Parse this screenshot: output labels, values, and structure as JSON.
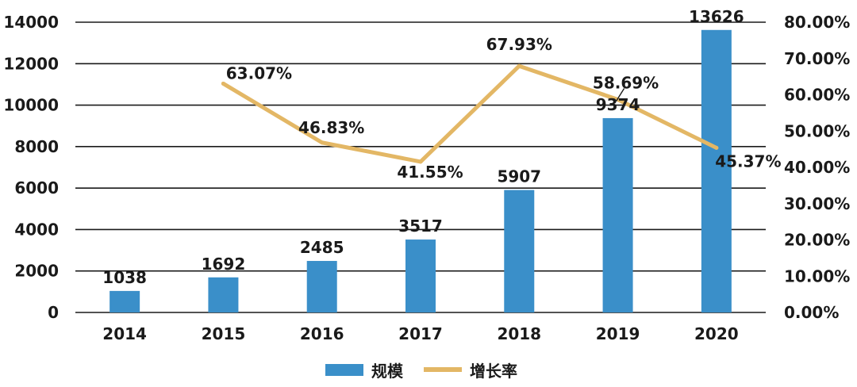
{
  "chart_data": {
    "type": "bar+line",
    "title": "",
    "categories": [
      "2014",
      "2015",
      "2016",
      "2017",
      "2018",
      "2019",
      "2020"
    ],
    "series": [
      {
        "name": "规模",
        "type": "bar",
        "axis": "left",
        "color": "#3a8fc9",
        "values": [
          1038,
          1692,
          2485,
          3517,
          5907,
          9374,
          13626
        ],
        "labels": [
          "1038",
          "1692",
          "2485",
          "3517",
          "5907",
          "9374",
          "13626"
        ]
      },
      {
        "name": "增长率",
        "type": "line",
        "axis": "right",
        "color": "#e3b765",
        "values": [
          null,
          63.07,
          46.83,
          41.55,
          67.93,
          58.69,
          45.37
        ],
        "labels": [
          "",
          "63.07%",
          "46.83%",
          "41.55%",
          "67.93%",
          "58.69%",
          "45.37%"
        ]
      }
    ],
    "y_left": {
      "min": 0,
      "max": 14000,
      "ticks": [
        "0",
        "2000",
        "4000",
        "6000",
        "8000",
        "10000",
        "12000",
        "14000"
      ]
    },
    "y_right": {
      "min": 0,
      "max": 80,
      "ticks": [
        "0.00%",
        "10.00%",
        "20.00%",
        "30.00%",
        "40.00%",
        "50.00%",
        "60.00%",
        "70.00%",
        "80.00%"
      ]
    },
    "grid": true,
    "legend_position": "bottom-center"
  }
}
